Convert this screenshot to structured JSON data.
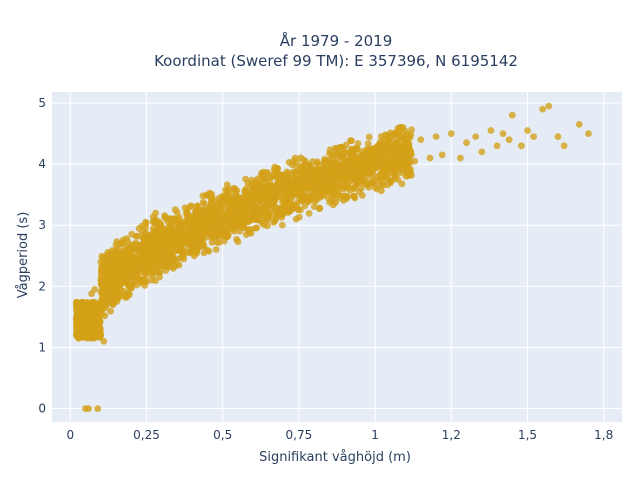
{
  "chart_data": {
    "type": "scatter",
    "title_lines": [
      "År 1979 - 2019",
      "Koordinat (Sweref 99 TM): E 357396, N 6195142"
    ],
    "xlabel": "Signifikant våghöjd (m)",
    "ylabel": "Vågperiod (s)",
    "xlim": [
      -0.06,
      1.81
    ],
    "ylim": [
      -0.22,
      5.18
    ],
    "xticks": [
      0,
      0.25,
      0.5,
      0.75,
      1,
      1.25,
      1.5,
      1.75
    ],
    "xtick_labels": [
      "0",
      "0,25",
      "0,5",
      "0,75",
      "1",
      "1,2",
      "1,5",
      "1,8"
    ],
    "yticks": [
      0,
      1,
      2,
      3,
      4,
      5
    ],
    "ytick_labels": [
      "0",
      "1",
      "2",
      "3",
      "4",
      "5"
    ],
    "grid": true,
    "background_color": "#e5ecf6",
    "marker_color": "#d4a017",
    "series": [
      {
        "points": [
          [
            0.05,
            0.0
          ],
          [
            0.06,
            0.0
          ],
          [
            0.09,
            0.0
          ],
          [
            0.02,
            1.22
          ],
          [
            0.03,
            1.3
          ],
          [
            0.04,
            1.42
          ],
          [
            0.05,
            1.55
          ],
          [
            0.06,
            1.6
          ],
          [
            0.08,
            1.4
          ],
          [
            0.1,
            1.2
          ],
          [
            0.11,
            1.1
          ],
          [
            0.07,
            1.88
          ],
          [
            0.08,
            1.95
          ],
          [
            0.1,
            2.1
          ],
          [
            0.12,
            2.25
          ],
          [
            0.13,
            2.4
          ],
          [
            0.15,
            2.6
          ],
          [
            0.17,
            2.7
          ],
          [
            0.14,
            1.7
          ],
          [
            0.18,
            1.82
          ],
          [
            0.2,
            2.0
          ],
          [
            0.22,
            2.15
          ],
          [
            0.25,
            2.3
          ],
          [
            0.28,
            2.45
          ],
          [
            0.3,
            2.55
          ],
          [
            0.2,
            2.6
          ],
          [
            0.25,
            2.85
          ],
          [
            0.28,
            3.2
          ],
          [
            0.32,
            3.1
          ],
          [
            0.35,
            3.0
          ],
          [
            0.38,
            2.8
          ],
          [
            0.42,
            2.75
          ],
          [
            0.45,
            2.9
          ],
          [
            0.48,
            3.2
          ],
          [
            0.5,
            3.4
          ],
          [
            0.52,
            3.6
          ],
          [
            0.55,
            3.3
          ],
          [
            0.6,
            3.2
          ],
          [
            0.62,
            3.5
          ],
          [
            0.65,
            3.45
          ],
          [
            0.68,
            3.7
          ],
          [
            0.7,
            3.3
          ],
          [
            0.75,
            3.5
          ],
          [
            0.78,
            3.8
          ],
          [
            0.8,
            3.9
          ],
          [
            0.85,
            3.7
          ],
          [
            0.88,
            4.05
          ],
          [
            0.92,
            3.8
          ],
          [
            0.95,
            4.0
          ],
          [
            0.98,
            3.85
          ],
          [
            1.0,
            4.15
          ],
          [
            1.03,
            3.95
          ],
          [
            1.05,
            4.2
          ],
          [
            1.08,
            4.0
          ],
          [
            1.1,
            4.3
          ],
          [
            1.13,
            4.05
          ],
          [
            1.15,
            4.4
          ],
          [
            1.18,
            4.1
          ],
          [
            1.2,
            4.45
          ],
          [
            1.22,
            4.15
          ],
          [
            1.25,
            4.5
          ],
          [
            1.28,
            4.1
          ],
          [
            1.3,
            4.35
          ],
          [
            1.33,
            4.45
          ],
          [
            1.35,
            4.2
          ],
          [
            1.38,
            4.55
          ],
          [
            1.4,
            4.3
          ],
          [
            1.42,
            4.5
          ],
          [
            1.44,
            4.4
          ],
          [
            1.45,
            4.8
          ],
          [
            1.48,
            4.3
          ],
          [
            1.5,
            4.55
          ],
          [
            1.52,
            4.45
          ],
          [
            1.55,
            4.9
          ],
          [
            1.57,
            4.95
          ],
          [
            1.6,
            4.45
          ],
          [
            1.62,
            4.3
          ],
          [
            1.67,
            4.65
          ],
          [
            1.7,
            4.5
          ]
        ]
      }
    ]
  }
}
